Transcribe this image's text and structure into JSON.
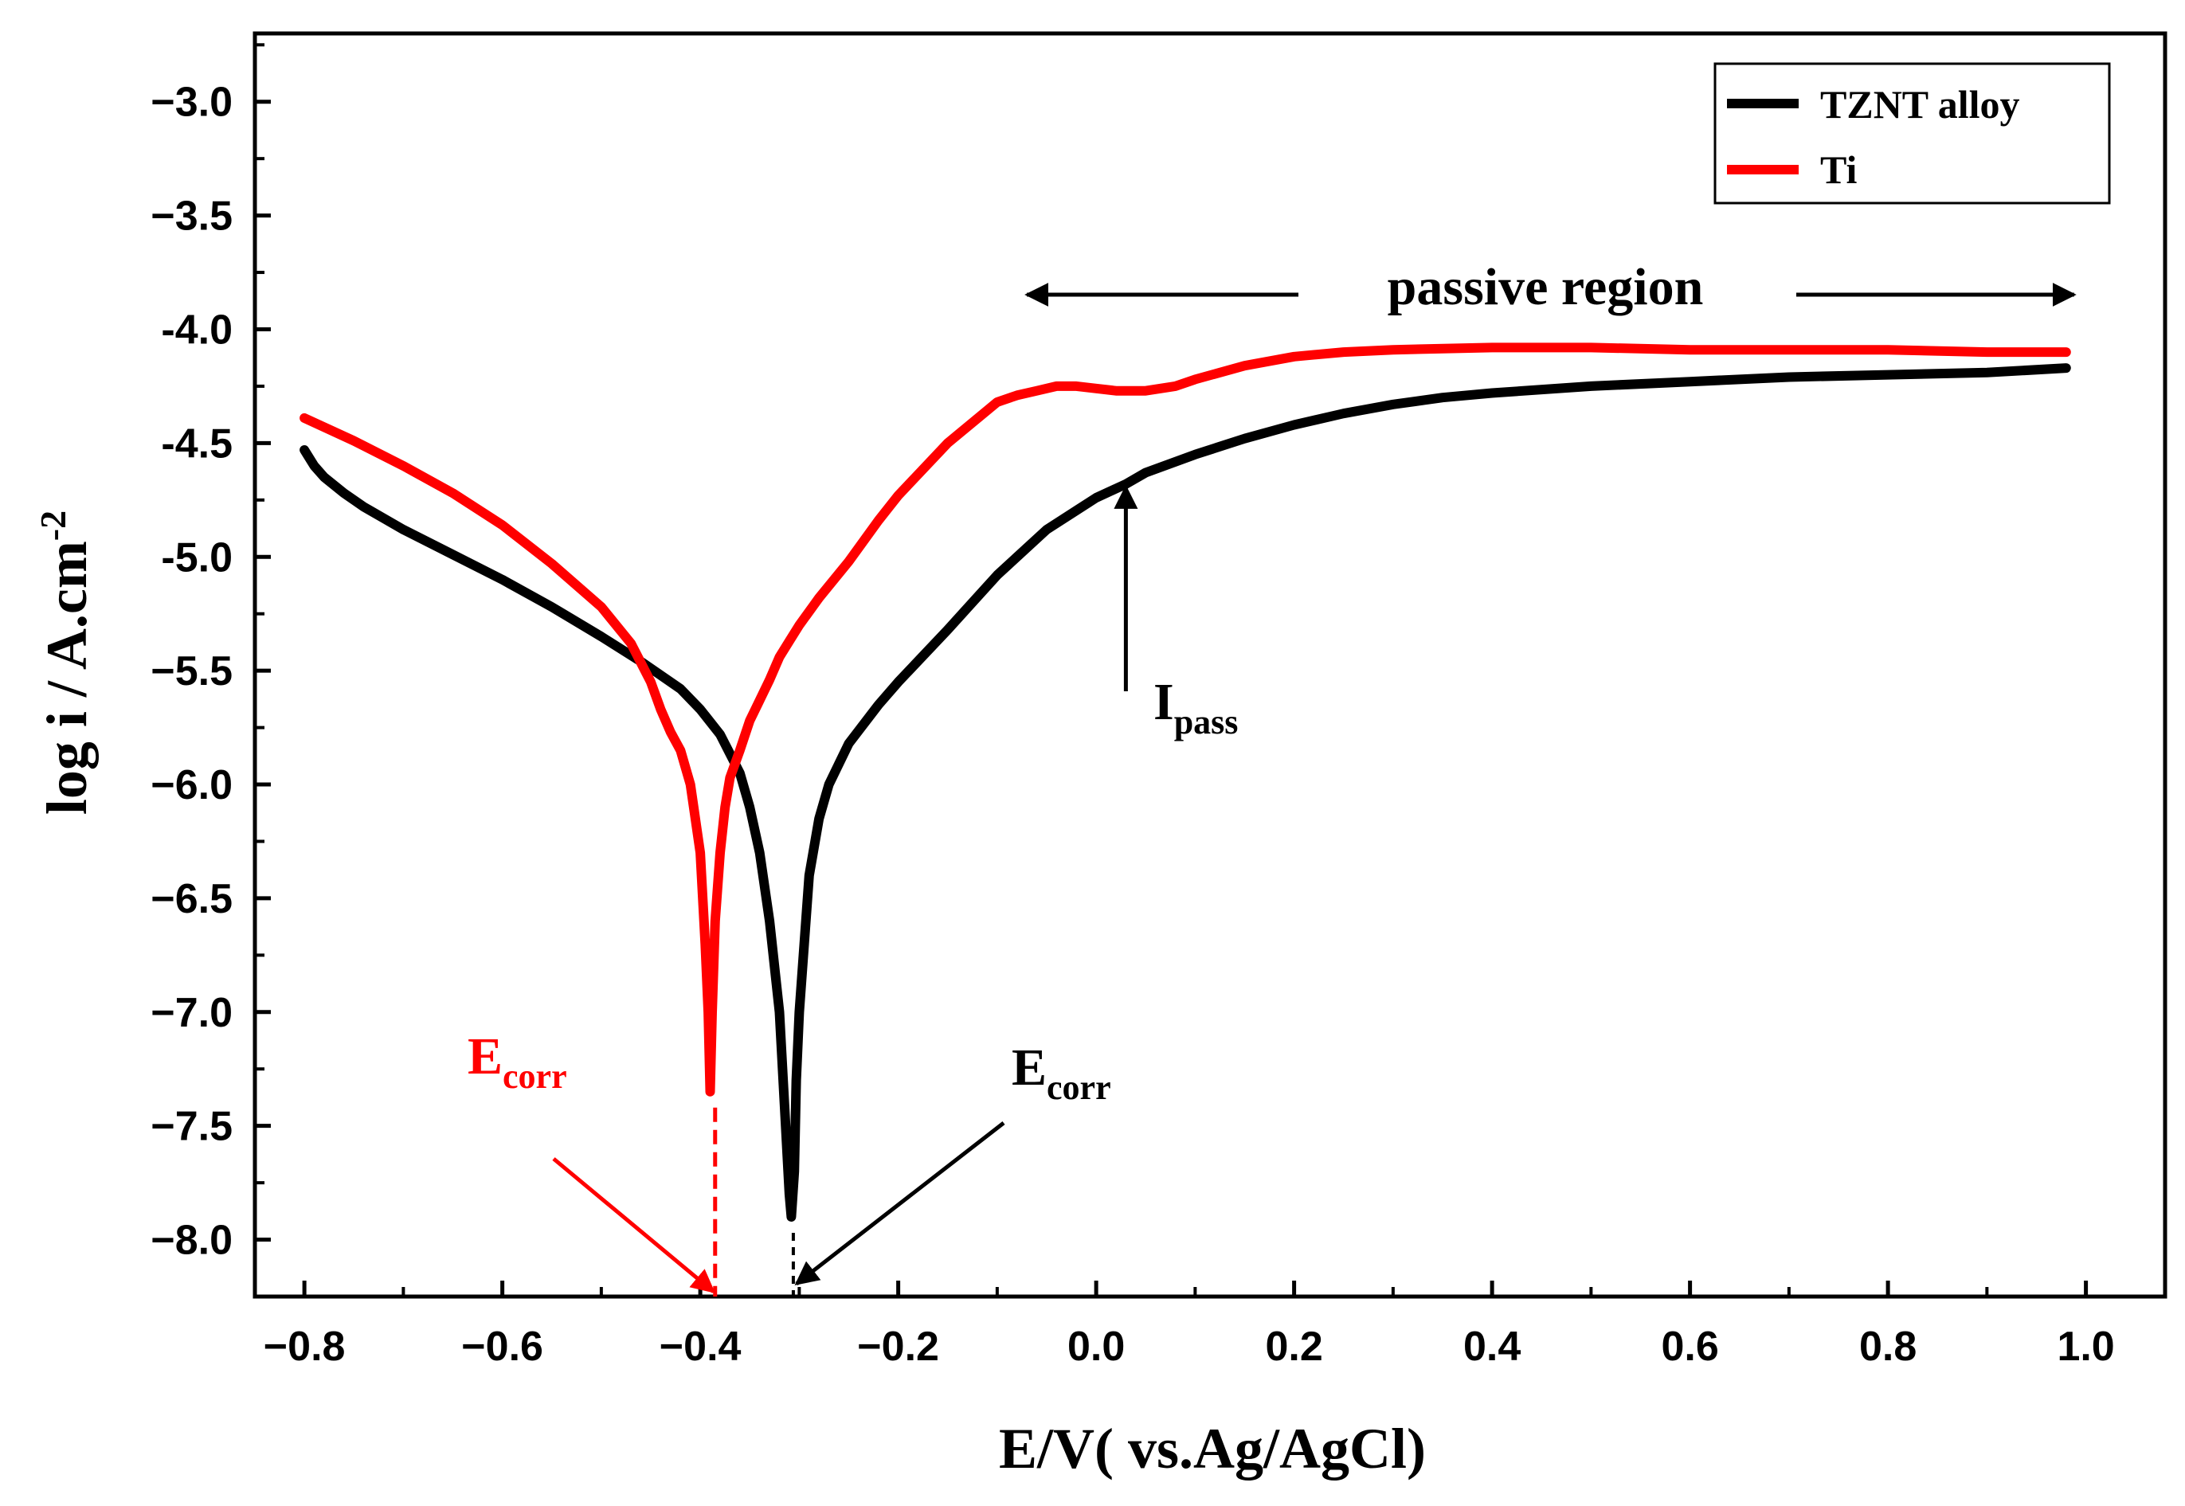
{
  "chart_data": {
    "type": "line",
    "xlabel": "E/V( vs.Ag/AgCl)",
    "ylabel_main": "log i / A.cm",
    "ylabel_sup": "-2",
    "xlim": [
      -0.85,
      1.08
    ],
    "ylim": [
      -8.25,
      -2.7
    ],
    "xticks": [
      -0.8,
      -0.6,
      -0.4,
      -0.2,
      0.0,
      0.2,
      0.4,
      0.6,
      0.8,
      1.0
    ],
    "xtick_labels": [
      "−0.8",
      "−0.6",
      "−0.4",
      "−0.2",
      "0.0",
      "0.2",
      "0.4",
      "0.6",
      "0.8",
      "1.0"
    ],
    "yticks": [
      -3.0,
      -3.5,
      -4.0,
      -4.5,
      -5.0,
      -5.5,
      -6.0,
      -6.5,
      -7.0,
      -7.5,
      -8.0
    ],
    "ytick_labels": [
      "−3.0",
      "−3.5",
      "-4.0",
      "-4.5",
      "-5.0",
      "−5.5",
      "−6.0",
      "−6.5",
      "−7.0",
      "−7.5",
      "−8.0"
    ],
    "legend": {
      "position": "top-right",
      "entries": [
        "TZNT alloy",
        "Ti"
      ]
    },
    "series": [
      {
        "name": "TZNT alloy",
        "color": "#000000",
        "x": [
          -0.8,
          -0.79,
          -0.78,
          -0.76,
          -0.74,
          -0.72,
          -0.7,
          -0.65,
          -0.6,
          -0.55,
          -0.5,
          -0.46,
          -0.42,
          -0.4,
          -0.38,
          -0.36,
          -0.35,
          -0.34,
          -0.33,
          -0.32,
          -0.315,
          -0.31,
          -0.308,
          -0.305,
          -0.303,
          -0.3,
          -0.295,
          -0.29,
          -0.28,
          -0.27,
          -0.25,
          -0.22,
          -0.2,
          -0.15,
          -0.1,
          -0.05,
          0.0,
          0.03,
          0.05,
          0.1,
          0.15,
          0.2,
          0.25,
          0.3,
          0.35,
          0.4,
          0.5,
          0.6,
          0.7,
          0.8,
          0.9,
          0.98
        ],
        "y": [
          -4.53,
          -4.6,
          -4.65,
          -4.72,
          -4.78,
          -4.83,
          -4.88,
          -4.99,
          -5.1,
          -5.22,
          -5.35,
          -5.46,
          -5.58,
          -5.67,
          -5.78,
          -5.95,
          -6.1,
          -6.3,
          -6.6,
          -7.0,
          -7.4,
          -7.8,
          -7.9,
          -7.7,
          -7.3,
          -7.0,
          -6.7,
          -6.4,
          -6.15,
          -6.0,
          -5.82,
          -5.65,
          -5.55,
          -5.32,
          -5.08,
          -4.88,
          -4.74,
          -4.68,
          -4.63,
          -4.55,
          -4.48,
          -4.42,
          -4.37,
          -4.33,
          -4.3,
          -4.28,
          -4.25,
          -4.23,
          -4.21,
          -4.2,
          -4.19,
          -4.17
        ]
      },
      {
        "name": "Ti",
        "color": "#ff0000",
        "x": [
          -0.8,
          -0.75,
          -0.7,
          -0.65,
          -0.6,
          -0.55,
          -0.5,
          -0.47,
          -0.45,
          -0.44,
          -0.43,
          -0.42,
          -0.41,
          -0.4,
          -0.395,
          -0.392,
          -0.39,
          -0.388,
          -0.385,
          -0.38,
          -0.375,
          -0.37,
          -0.36,
          -0.35,
          -0.34,
          -0.33,
          -0.32,
          -0.31,
          -0.3,
          -0.28,
          -0.25,
          -0.22,
          -0.2,
          -0.15,
          -0.1,
          -0.08,
          -0.06,
          -0.04,
          -0.02,
          0.0,
          0.02,
          0.05,
          0.08,
          0.1,
          0.15,
          0.2,
          0.25,
          0.3,
          0.4,
          0.5,
          0.6,
          0.7,
          0.8,
          0.9,
          0.98
        ],
        "y": [
          -4.39,
          -4.49,
          -4.6,
          -4.72,
          -4.86,
          -5.03,
          -5.22,
          -5.38,
          -5.55,
          -5.67,
          -5.77,
          -5.85,
          -6.0,
          -6.3,
          -6.7,
          -7.0,
          -7.35,
          -7.0,
          -6.6,
          -6.3,
          -6.1,
          -5.97,
          -5.85,
          -5.72,
          -5.63,
          -5.54,
          -5.44,
          -5.37,
          -5.3,
          -5.18,
          -5.02,
          -4.84,
          -4.73,
          -4.5,
          -4.32,
          -4.29,
          -4.27,
          -4.25,
          -4.25,
          -4.26,
          -4.27,
          -4.27,
          -4.25,
          -4.22,
          -4.16,
          -4.12,
          -4.1,
          -4.09,
          -4.08,
          -4.08,
          -4.09,
          -4.09,
          -4.09,
          -4.1,
          -4.1
        ]
      }
    ],
    "annotations": {
      "passive_region": "passive region",
      "ipass_main": "I",
      "ipass_sub": "pass",
      "ecorr_ti_main": "E",
      "ecorr_ti_sub": "corr",
      "ecorr_tznt_main": "E",
      "ecorr_tznt_sub": "corr",
      "ecorr_ti_value": -0.385,
      "ecorr_tznt_value": -0.306,
      "ipass_value": [
        0.03,
        -4.68
      ],
      "passive_arrow_x": [
        -0.07,
        0.98
      ]
    }
  }
}
